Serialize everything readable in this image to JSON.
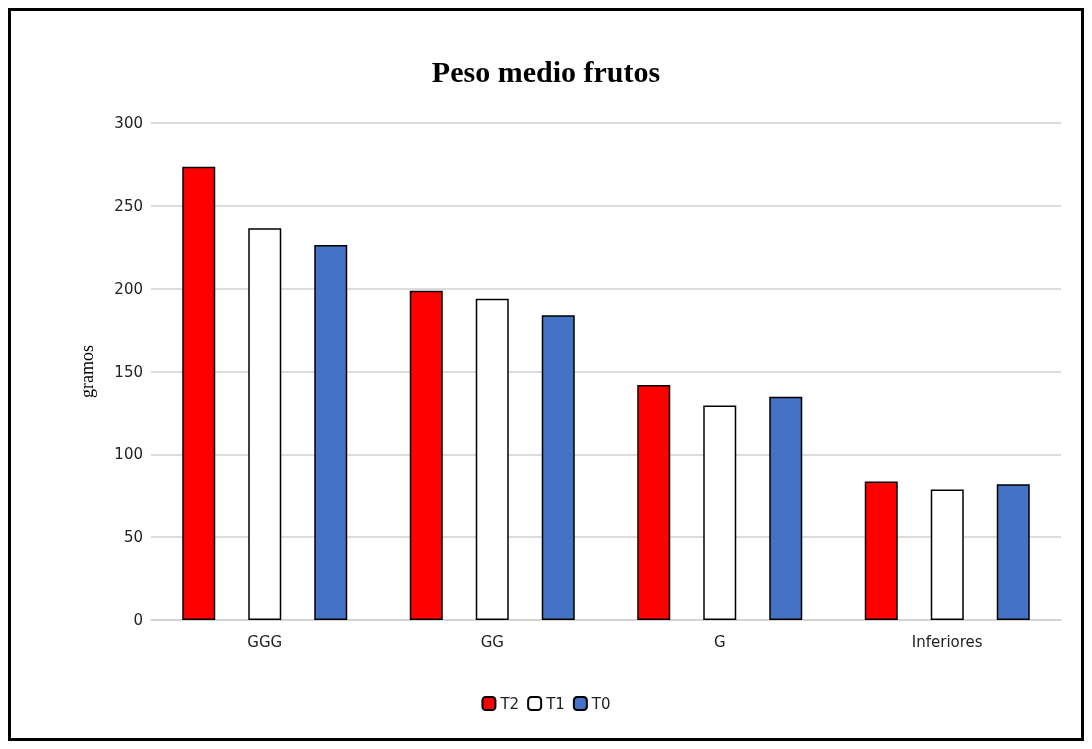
{
  "chart_data": {
    "type": "bar",
    "title": "Peso medio frutos",
    "ylabel": "gramos",
    "categories": [
      "GGG",
      "GG",
      "G",
      "Inferiores"
    ],
    "series": [
      {
        "name": "T2",
        "color": "#ff0000",
        "values": [
          273.6,
          198.7,
          141.9,
          83.6
        ]
      },
      {
        "name": "T1",
        "color": "#ffffff",
        "values": [
          236.5,
          193.9,
          129.5,
          78.8
        ]
      },
      {
        "name": "T0",
        "color": "#4472c4",
        "values": [
          226.3,
          183.9,
          134.7,
          82.0
        ]
      }
    ],
    "ylim": [
      0,
      300
    ],
    "yticks": [
      0,
      50,
      100,
      150,
      200,
      250,
      300
    ],
    "grid": "y",
    "legend": "bottom"
  }
}
